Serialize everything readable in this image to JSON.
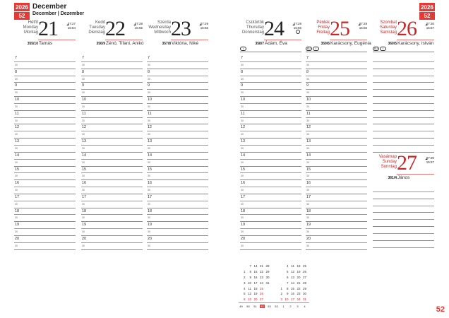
{
  "header": {
    "year": "2026",
    "week": "52",
    "month": "December",
    "month_sub": "December | Dezember"
  },
  "hours": [
    "7",
    "8",
    "9",
    "10",
    "11",
    "12",
    "13",
    "14",
    "15",
    "16",
    "17",
    "18",
    "19",
    "20"
  ],
  "half_label": "30",
  "days": [
    {
      "names": [
        "Hétfő",
        "Monday",
        "Montag"
      ],
      "num": "21",
      "sunrise": "07:27",
      "sunset": "15:54",
      "daynum": "355/10",
      "nameday": "Tamás",
      "red": false
    },
    {
      "names": [
        "Kedd",
        "Tuesday",
        "Dienstag"
      ],
      "num": "22",
      "sunrise": "07:28",
      "sunset": "15:55",
      "daynum": "356/9",
      "nameday": "Zénó, Tifani, Anikó",
      "red": false
    },
    {
      "names": [
        "Szerda",
        "Wednesday",
        "Mittwoch"
      ],
      "num": "23",
      "sunrise": "07:29",
      "sunset": "15:55",
      "daynum": "357/8",
      "nameday": "Viktória, Niké",
      "red": false
    },
    {
      "names": [
        "Csütörtök",
        "Thursday",
        "Donnerstag"
      ],
      "num": "24",
      "sunrise": "07:29",
      "sunset": "15:56",
      "daynum": "358/7",
      "nameday": "Ádám, Éva",
      "red": false,
      "moon": "full-moon",
      "icons": [
        "•"
      ]
    },
    {
      "names": [
        "Péntek",
        "Friday",
        "Freitag"
      ],
      "num": "25",
      "sunrise": "07:29",
      "sunset": "15:56",
      "daynum": "359/6",
      "nameday": "Karácsony, Eugénia",
      "red": true,
      "icons": [
        "EU",
        "•"
      ]
    },
    {
      "names": [
        "Szombat",
        "Saturday",
        "Samstag"
      ],
      "num": "26",
      "sunrise": "07:30",
      "sunset": "15:57",
      "daynum": "360/5",
      "nameday": "Karácsony, István",
      "red": true,
      "icons": [
        "EU",
        "•"
      ]
    },
    {
      "names": [
        "Vasárnap",
        "Sunday",
        "Sonntag"
      ],
      "num": "27",
      "sunrise": "07:30",
      "sunset": "15:57",
      "daynum": "361/4",
      "nameday": "János",
      "red": true
    }
  ],
  "mini_calendar": {
    "months": [
      [
        [
          "",
          "7",
          "14",
          "21",
          "28"
        ],
        [
          "1",
          "8",
          "15",
          "22",
          "29"
        ],
        [
          "2",
          "9",
          "16",
          "23",
          "30"
        ],
        [
          "3",
          "10",
          "17",
          "24",
          "31"
        ],
        [
          "4",
          "11",
          "18",
          "25",
          ""
        ],
        [
          "5",
          "12",
          "19",
          "26",
          ""
        ],
        [
          "6",
          "13",
          "20",
          "27",
          ""
        ]
      ],
      [
        [
          "",
          "4",
          "11",
          "18",
          "25"
        ],
        [
          "",
          "5",
          "12",
          "19",
          "26"
        ],
        [
          "",
          "6",
          "13",
          "20",
          "27"
        ],
        [
          "",
          "7",
          "14",
          "21",
          "28"
        ],
        [
          "1",
          "8",
          "15",
          "22",
          "29"
        ],
        [
          "2",
          "9",
          "16",
          "23",
          "30"
        ],
        [
          "3",
          "10",
          "17",
          "24",
          "31"
        ]
      ]
    ],
    "weeks": [
      "49",
      "50",
      "51",
      "52",
      "53",
      "53",
      "1",
      "2",
      "3",
      "4"
    ],
    "current_week": "52"
  },
  "page_number": "52"
}
